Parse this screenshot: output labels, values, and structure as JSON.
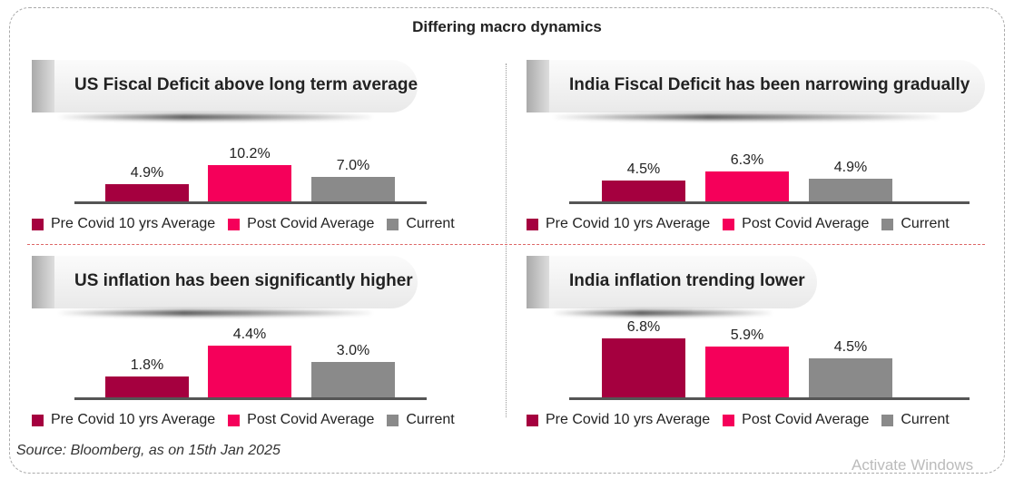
{
  "title": "Differing macro dynamics",
  "source": "Source: Bloomberg, as on 15th Jan 2025",
  "watermark": "Activate Windows",
  "colors": {
    "pre": "#a5003f",
    "post": "#f5005a",
    "current": "#8a8a8a"
  },
  "legend": [
    "Pre Covid 10 yrs Average",
    "Post Covid Average",
    "Current"
  ],
  "chart_data": [
    {
      "type": "bar",
      "title": "US Fiscal Deficit above long term average",
      "categories": [
        "Pre Covid 10 yrs Average",
        "Post Covid Average",
        "Current"
      ],
      "values": [
        4.9,
        10.2,
        7.0
      ],
      "labels": [
        "4.9%",
        "10.2%",
        "7.0%"
      ]
    },
    {
      "type": "bar",
      "title": "India Fiscal Deficit has been narrowing gradually",
      "categories": [
        "Pre Covid 10 yrs Average",
        "Post Covid Average",
        "Current"
      ],
      "values": [
        4.5,
        6.3,
        4.9
      ],
      "labels": [
        "4.5%",
        "6.3%",
        "4.9%"
      ]
    },
    {
      "type": "bar",
      "title": "US inflation has been significantly higher",
      "categories": [
        "Pre Covid 10 yrs Average",
        "Post Covid Average",
        "Current"
      ],
      "values": [
        1.8,
        4.4,
        3.0
      ],
      "labels": [
        "1.8%",
        "4.4%",
        "3.0%"
      ]
    },
    {
      "type": "bar",
      "title": "India inflation trending lower",
      "categories": [
        "Pre Covid 10 yrs Average",
        "Post Covid Average",
        "Current"
      ],
      "values": [
        6.8,
        5.9,
        4.5
      ],
      "labels": [
        "6.8%",
        "5.9%",
        "4.5%"
      ]
    }
  ]
}
